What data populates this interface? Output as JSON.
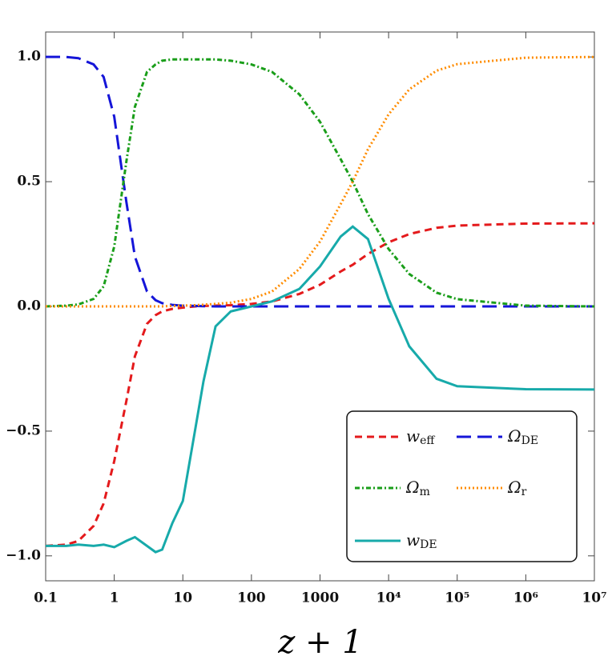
{
  "chart_data": {
    "type": "line",
    "x_label": "z + 1",
    "x": [
      0.1,
      0.2,
      0.3,
      0.5,
      0.7,
      1,
      1.5,
      2,
      3,
      4,
      5,
      7,
      10,
      15,
      20,
      30,
      50,
      100,
      200,
      500,
      1000,
      2000,
      3000,
      5000,
      10000,
      20000,
      50000,
      100000,
      1000000,
      10000000
    ],
    "series": [
      {
        "name": "w_eff",
        "color": "#e41a1c",
        "dash": "9 6",
        "values": [
          -0.96,
          -0.955,
          -0.94,
          -0.88,
          -0.79,
          -0.62,
          -0.38,
          -0.2,
          -0.07,
          -0.035,
          -0.02,
          -0.01,
          -0.005,
          0,
          0.002,
          0.003,
          0.005,
          0.01,
          0.02,
          0.05,
          0.087,
          0.14,
          0.167,
          0.21,
          0.257,
          0.29,
          0.315,
          0.324,
          0.332,
          0.333
        ]
      },
      {
        "name": "Ω_DE",
        "color": "#1515d8",
        "dash": "18 8",
        "values": [
          1.0,
          1.0,
          0.995,
          0.97,
          0.92,
          0.76,
          0.42,
          0.2,
          0.06,
          0.025,
          0.013,
          0.006,
          0.003,
          0.002,
          0.001,
          0,
          0,
          0,
          0,
          0,
          0,
          0,
          0,
          0,
          0,
          0,
          0,
          0,
          0,
          0
        ]
      },
      {
        "name": "Ω_m",
        "color": "#1a9e1a",
        "dash": "6 3 2 3",
        "values": [
          0,
          0.003,
          0.008,
          0.03,
          0.08,
          0.24,
          0.58,
          0.8,
          0.94,
          0.97,
          0.985,
          0.99,
          0.99,
          0.99,
          0.99,
          0.99,
          0.985,
          0.97,
          0.94,
          0.85,
          0.74,
          0.59,
          0.5,
          0.37,
          0.23,
          0.13,
          0.055,
          0.029,
          0.003,
          0
        ]
      },
      {
        "name": "Ω_r",
        "color": "#ff8c00",
        "dash": "2 3",
        "values": [
          0,
          0,
          0,
          0,
          0,
          0,
          0,
          0,
          0,
          0,
          0,
          0.002,
          0.003,
          0.005,
          0.007,
          0.01,
          0.015,
          0.03,
          0.06,
          0.15,
          0.26,
          0.41,
          0.5,
          0.63,
          0.77,
          0.87,
          0.945,
          0.971,
          0.997,
          1.0
        ]
      },
      {
        "name": "w_DE",
        "color": "#17aaaa",
        "dash": "none",
        "values": [
          -0.96,
          -0.96,
          -0.955,
          -0.96,
          -0.955,
          -0.965,
          -0.94,
          -0.925,
          -0.96,
          -0.985,
          -0.975,
          -0.87,
          -0.78,
          -0.5,
          -0.3,
          -0.08,
          -0.02,
          0.0,
          0.02,
          0.07,
          0.16,
          0.28,
          0.32,
          0.27,
          0.03,
          -0.16,
          -0.29,
          -0.32,
          -0.332,
          -0.333
        ]
      }
    ],
    "xscale": "log",
    "xlim": [
      0.1,
      10000000
    ],
    "xticks": [
      0.1,
      1,
      10,
      100,
      1000,
      {
        "value": 10000,
        "label": "10⁴"
      },
      {
        "value": 100000,
        "label": "10⁵"
      },
      {
        "value": 1000000,
        "label": "10⁶"
      },
      {
        "value": 10000000,
        "label": "10⁷"
      }
    ],
    "ylim": [
      -1.1,
      1.1
    ],
    "yticks": [
      {
        "value": -1,
        "label": "−1.0"
      },
      {
        "value": -0.5,
        "label": "−0.5"
      },
      {
        "value": 0,
        "label": "0.0"
      },
      0.5,
      {
        "value": 1,
        "label": "1.0"
      }
    ],
    "grid": false,
    "legend": "lower right"
  }
}
